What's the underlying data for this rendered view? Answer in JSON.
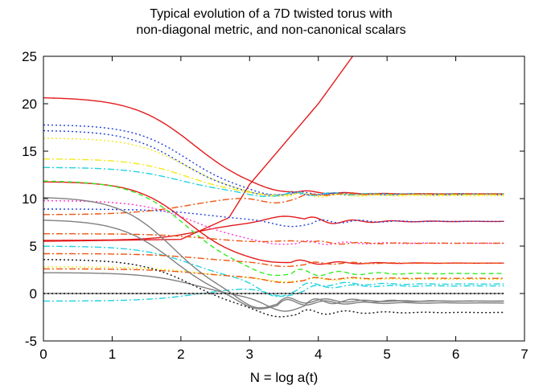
{
  "chart_data": {
    "type": "line",
    "title": "Typical evolution of a 7D twisted torus with",
    "subtitle": "non-diagonal metric, and non-canonical scalars",
    "xlabel": "N = log a(t)",
    "ylabel": "",
    "xlim": [
      0,
      7
    ],
    "ylim": [
      -5,
      25
    ],
    "xticks": [
      0,
      1,
      2,
      3,
      4,
      5,
      6,
      7
    ],
    "yticks": [
      -5,
      0,
      5,
      10,
      15,
      20,
      25
    ],
    "grid": false,
    "legend": "none",
    "x_end": 6.7,
    "series": [
      {
        "color": "#e41a1c",
        "style": "solid",
        "points": [
          [
            0,
            5.5
          ],
          [
            2,
            5.7
          ],
          [
            2.7,
            8
          ],
          [
            3,
            11.5
          ],
          [
            4,
            20
          ],
          [
            4.5,
            25
          ]
        ]
      },
      {
        "color": "#e41a1c",
        "style": "solid",
        "start": 20.7,
        "final": 10.5,
        "center": 2.2,
        "width": 0.45,
        "dip": -0.3,
        "osc": 0.15
      },
      {
        "color": "#e41a1c",
        "style": "solid",
        "start": 5.6,
        "final": 7.6,
        "center": 2.3,
        "width": 0.35,
        "dip": 0.6,
        "osc": 0.4
      },
      {
        "color": "#e41a1c",
        "style": "solid",
        "start": 11.8,
        "final": 3.2,
        "center": 2.1,
        "width": 0.38,
        "dip": -0.2,
        "osc": 0.3
      },
      {
        "color": "#1f3fd8",
        "style": "dotted",
        "start": 17.8,
        "final": 10.5,
        "center": 2.1,
        "width": 0.4,
        "dip": -0.4,
        "osc": 0.2
      },
      {
        "color": "#1f3fd8",
        "style": "dotted",
        "start": 17.2,
        "final": 10.4,
        "center": 2.0,
        "width": 0.4,
        "dip": -0.3,
        "osc": 0.2
      },
      {
        "color": "#1f3fd8",
        "style": "dotted",
        "start": 8.9,
        "final": 7.6,
        "center": 2.4,
        "width": 0.4,
        "dip": -0.6,
        "osc": 0.3
      },
      {
        "color": "#f2ea1e",
        "style": "dotted",
        "start": 16.4,
        "final": 10.3,
        "center": 2.1,
        "width": 0.4,
        "dip": -0.3,
        "osc": 0.3
      },
      {
        "color": "#f2ea1e",
        "style": "dashdot",
        "start": 14.2,
        "final": 10.4,
        "center": 2.1,
        "width": 0.4,
        "dip": -0.2,
        "osc": 0.2
      },
      {
        "color": "#f2ea1e",
        "style": "dotted",
        "start": 2.8,
        "final": 1.5,
        "center": 2.3,
        "width": 0.4,
        "dip": -0.3,
        "osc": 0.2
      },
      {
        "color": "#22d3e0",
        "style": "dashdot",
        "start": 13.3,
        "final": 10.5,
        "center": 2.0,
        "width": 0.4,
        "dip": -0.4,
        "osc": 0.3
      },
      {
        "color": "#22d3e0",
        "style": "dashdot",
        "start": 5.0,
        "final": 1.0,
        "center": 2.2,
        "width": 0.4,
        "dip": -1.5,
        "osc": 0.4
      },
      {
        "color": "#22d3e0",
        "style": "dashdot",
        "start": -0.8,
        "final": 0.8,
        "center": 2.3,
        "width": 0.4,
        "dip": -1.0,
        "osc": 0.3
      },
      {
        "color": "#33ee22",
        "style": "dashed",
        "start": 11.9,
        "final": 2.1,
        "center": 2.1,
        "width": 0.4,
        "dip": -0.6,
        "osc": 0.5
      },
      {
        "color": "#ff33cc",
        "style": "dotted",
        "start": 9.8,
        "final": 5.3,
        "center": 2.2,
        "width": 0.4,
        "dip": -0.3,
        "osc": 0.3
      },
      {
        "color": "#ee5511",
        "style": "dashdot",
        "start": 8.3,
        "final": 10.5,
        "center": 2.2,
        "width": 0.45,
        "dip": -0.8,
        "osc": 0.2
      },
      {
        "color": "#ee5511",
        "style": "dashdot",
        "start": 6.3,
        "final": 5.3,
        "center": 2.4,
        "width": 0.4,
        "dip": 0.2,
        "osc": 0.2
      },
      {
        "color": "#ee5511",
        "style": "dashdot",
        "start": 4.2,
        "final": 3.2,
        "center": 2.3,
        "width": 0.4,
        "dip": -0.4,
        "osc": 0.2
      },
      {
        "color": "#ee5511",
        "style": "dashdot",
        "start": 2.6,
        "final": 1.6,
        "center": 2.3,
        "width": 0.4,
        "dip": -0.5,
        "osc": 0.2
      },
      {
        "color": "#808080",
        "style": "solid",
        "start": 10.2,
        "final": -0.8,
        "center": 1.9,
        "width": 0.4,
        "dip": -1.2,
        "osc": 0.5
      },
      {
        "color": "#808080",
        "style": "solid",
        "start": 7.8,
        "final": -1.0,
        "center": 1.9,
        "width": 0.4,
        "dip": -1.0,
        "osc": 0.5
      },
      {
        "color": "#808080",
        "style": "solid",
        "start": 2.2,
        "final": -0.8,
        "center": 2.3,
        "width": 0.4,
        "dip": -1.2,
        "osc": 0.5
      },
      {
        "color": "#808080",
        "style": "solid",
        "start": 0.0,
        "final": 0.0,
        "center": 2.3,
        "width": 0.4,
        "dip": 0,
        "osc": 0
      },
      {
        "color": "#111111",
        "style": "dotted",
        "start": 3.6,
        "final": -2.0,
        "center": 2.2,
        "width": 0.4,
        "dip": -0.7,
        "osc": 0.4
      },
      {
        "color": "#111111",
        "style": "dotted",
        "start": 0.0,
        "final": 0.0,
        "center": 2.3,
        "width": 0.4,
        "dip": 0,
        "osc": 0
      }
    ]
  }
}
